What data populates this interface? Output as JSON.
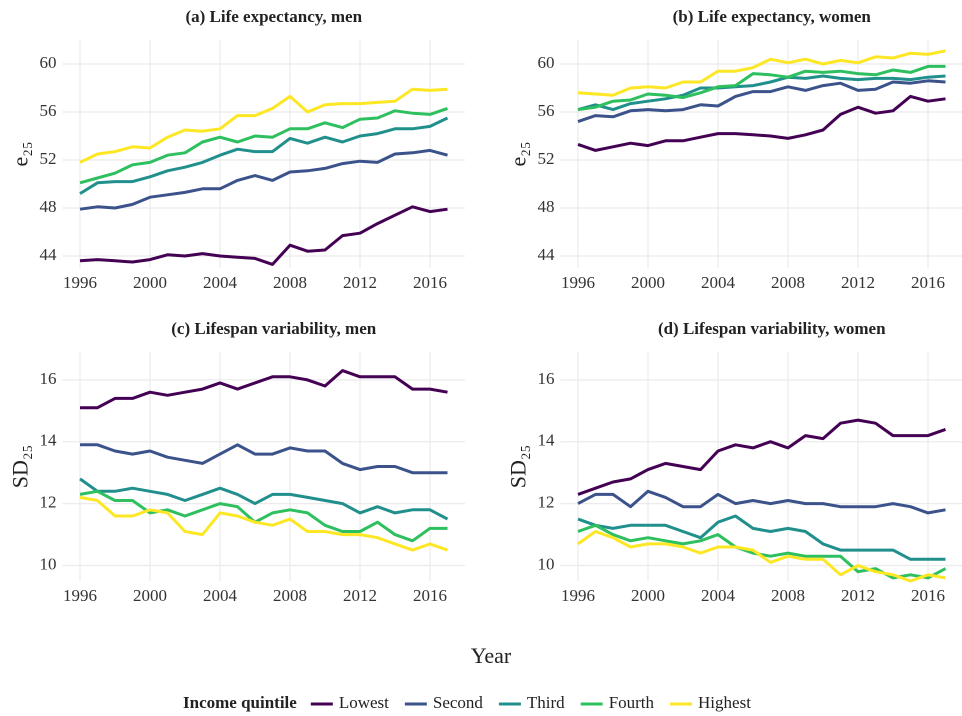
{
  "xlabel": "Year",
  "legend_title": "Income quintile",
  "chart_data": [
    {
      "type": "line",
      "title": "(a) Life expectancy, men",
      "ylabel": "e₂₅",
      "x": [
        1996,
        1997,
        1998,
        1999,
        2000,
        2001,
        2002,
        2003,
        2004,
        2005,
        2006,
        2007,
        2008,
        2009,
        2010,
        2011,
        2012,
        2013,
        2014,
        2015,
        2016,
        2017
      ],
      "xlim": [
        1995,
        2018
      ],
      "xticks": [
        1996,
        2000,
        2004,
        2008,
        2012,
        2016
      ],
      "ylim": [
        43,
        62
      ],
      "yticks": [
        44,
        48,
        52,
        56,
        60
      ],
      "grid": true,
      "series": [
        {
          "name": "Lowest",
          "color": "#440154",
          "values": [
            43.6,
            43.7,
            43.6,
            43.5,
            43.7,
            44.1,
            44.0,
            44.2,
            44.0,
            43.9,
            43.8,
            43.3,
            44.9,
            44.4,
            44.5,
            45.7,
            45.9,
            46.7,
            47.4,
            48.1,
            47.7,
            47.9
          ]
        },
        {
          "name": "Second",
          "color": "#3b528b",
          "values": [
            47.9,
            48.1,
            48.0,
            48.3,
            48.9,
            49.1,
            49.3,
            49.6,
            49.6,
            50.3,
            50.7,
            50.3,
            51.0,
            51.1,
            51.3,
            51.7,
            51.9,
            51.8,
            52.5,
            52.6,
            52.8,
            52.4
          ]
        },
        {
          "name": "Third",
          "color": "#21908c",
          "values": [
            49.2,
            50.1,
            50.2,
            50.2,
            50.6,
            51.1,
            51.4,
            51.8,
            52.4,
            52.9,
            52.7,
            52.7,
            53.8,
            53.4,
            53.9,
            53.5,
            54.0,
            54.2,
            54.6,
            54.6,
            54.8,
            55.5
          ]
        },
        {
          "name": "Fourth",
          "color": "#2ebf5f",
          "values": [
            50.1,
            50.5,
            50.9,
            51.6,
            51.8,
            52.4,
            52.6,
            53.5,
            53.9,
            53.5,
            54.0,
            53.9,
            54.6,
            54.6,
            55.1,
            54.7,
            55.4,
            55.5,
            56.1,
            55.9,
            55.8,
            56.3
          ]
        },
        {
          "name": "Highest",
          "color": "#fde725",
          "values": [
            51.8,
            52.5,
            52.7,
            53.1,
            53.0,
            53.9,
            54.5,
            54.4,
            54.6,
            55.7,
            55.7,
            56.3,
            57.3,
            56.0,
            56.6,
            56.7,
            56.7,
            56.8,
            56.9,
            57.9,
            57.8,
            57.9
          ]
        }
      ]
    },
    {
      "type": "line",
      "title": "(b) Life expectancy, women",
      "ylabel": "e₂₅",
      "x": [
        1996,
        1997,
        1998,
        1999,
        2000,
        2001,
        2002,
        2003,
        2004,
        2005,
        2006,
        2007,
        2008,
        2009,
        2010,
        2011,
        2012,
        2013,
        2014,
        2015,
        2016,
        2017
      ],
      "xlim": [
        1995,
        2018
      ],
      "xticks": [
        1996,
        2000,
        2004,
        2008,
        2012,
        2016
      ],
      "ylim": [
        43,
        62
      ],
      "yticks": [
        44,
        48,
        52,
        56,
        60
      ],
      "grid": true,
      "series": [
        {
          "name": "Lowest",
          "color": "#440154",
          "values": [
            53.3,
            52.8,
            53.1,
            53.4,
            53.2,
            53.6,
            53.6,
            53.9,
            54.2,
            54.2,
            54.1,
            54.0,
            53.8,
            54.1,
            54.5,
            55.8,
            56.4,
            55.9,
            56.1,
            57.3,
            56.9,
            57.1
          ]
        },
        {
          "name": "Second",
          "color": "#3b528b",
          "values": [
            55.2,
            55.7,
            55.6,
            56.1,
            56.2,
            56.1,
            56.2,
            56.6,
            56.5,
            57.3,
            57.7,
            57.7,
            58.1,
            57.8,
            58.2,
            58.4,
            57.8,
            57.9,
            58.5,
            58.4,
            58.6,
            58.5
          ]
        },
        {
          "name": "Third",
          "color": "#21908c",
          "values": [
            56.2,
            56.6,
            56.2,
            56.7,
            56.9,
            57.1,
            57.4,
            58.0,
            58.0,
            58.1,
            58.2,
            58.5,
            58.9,
            58.8,
            59.0,
            58.8,
            58.7,
            58.8,
            58.8,
            58.7,
            58.9,
            59.0
          ]
        },
        {
          "name": "Fourth",
          "color": "#2ebf5f",
          "values": [
            56.2,
            56.4,
            56.9,
            57.0,
            57.5,
            57.4,
            57.2,
            57.6,
            58.1,
            58.2,
            59.2,
            59.1,
            58.9,
            59.4,
            59.3,
            59.4,
            59.2,
            59.1,
            59.5,
            59.3,
            59.8,
            59.8
          ]
        },
        {
          "name": "Highest",
          "color": "#fde725",
          "values": [
            57.6,
            57.5,
            57.4,
            58.0,
            58.1,
            58.0,
            58.5,
            58.5,
            59.4,
            59.4,
            59.7,
            60.4,
            60.1,
            60.4,
            60.0,
            60.3,
            60.1,
            60.6,
            60.5,
            60.9,
            60.8,
            61.1
          ]
        }
      ]
    },
    {
      "type": "line",
      "title": "(c) Lifespan variability, men",
      "ylabel": "SD₂₅",
      "x": [
        1996,
        1997,
        1998,
        1999,
        2000,
        2001,
        2002,
        2003,
        2004,
        2005,
        2006,
        2007,
        2008,
        2009,
        2010,
        2011,
        2012,
        2013,
        2014,
        2015,
        2016,
        2017
      ],
      "xlim": [
        1995,
        2018
      ],
      "xticks": [
        1996,
        2000,
        2004,
        2008,
        2012,
        2016
      ],
      "ylim": [
        9.5,
        16.9
      ],
      "yticks": [
        10,
        12,
        14,
        16
      ],
      "grid": true,
      "series": [
        {
          "name": "Lowest",
          "color": "#440154",
          "values": [
            15.1,
            15.1,
            15.4,
            15.4,
            15.6,
            15.5,
            15.6,
            15.7,
            15.9,
            15.7,
            15.9,
            16.1,
            16.1,
            16.0,
            15.8,
            16.3,
            16.1,
            16.1,
            16.1,
            15.7,
            15.7,
            15.6
          ]
        },
        {
          "name": "Second",
          "color": "#3b528b",
          "values": [
            13.9,
            13.9,
            13.7,
            13.6,
            13.7,
            13.5,
            13.4,
            13.3,
            13.6,
            13.9,
            13.6,
            13.6,
            13.8,
            13.7,
            13.7,
            13.3,
            13.1,
            13.2,
            13.2,
            13.0,
            13.0,
            13.0
          ]
        },
        {
          "name": "Third",
          "color": "#21908c",
          "values": [
            12.8,
            12.4,
            12.4,
            12.5,
            12.4,
            12.3,
            12.1,
            12.3,
            12.5,
            12.3,
            12.0,
            12.3,
            12.3,
            12.2,
            12.1,
            12.0,
            11.7,
            11.9,
            11.7,
            11.8,
            11.8,
            11.5
          ]
        },
        {
          "name": "Fourth",
          "color": "#2ebf5f",
          "values": [
            12.3,
            12.4,
            12.1,
            12.1,
            11.7,
            11.8,
            11.6,
            11.8,
            12.0,
            11.9,
            11.4,
            11.7,
            11.8,
            11.7,
            11.3,
            11.1,
            11.1,
            11.4,
            11.0,
            10.8,
            11.2,
            11.2
          ]
        },
        {
          "name": "Highest",
          "color": "#fde725",
          "values": [
            12.2,
            12.1,
            11.6,
            11.6,
            11.8,
            11.7,
            11.1,
            11.0,
            11.7,
            11.6,
            11.4,
            11.3,
            11.5,
            11.1,
            11.1,
            11.0,
            11.0,
            10.9,
            10.7,
            10.5,
            10.7,
            10.5
          ]
        }
      ]
    },
    {
      "type": "line",
      "title": "(d) Lifespan variability, women",
      "ylabel": "SD₂₅",
      "x": [
        1996,
        1997,
        1998,
        1999,
        2000,
        2001,
        2002,
        2003,
        2004,
        2005,
        2006,
        2007,
        2008,
        2009,
        2010,
        2011,
        2012,
        2013,
        2014,
        2015,
        2016,
        2017
      ],
      "xlim": [
        1995,
        2018
      ],
      "xticks": [
        1996,
        2000,
        2004,
        2008,
        2012,
        2016
      ],
      "ylim": [
        9.5,
        16.9
      ],
      "yticks": [
        10,
        12,
        14,
        16
      ],
      "grid": true,
      "series": [
        {
          "name": "Lowest",
          "color": "#440154",
          "values": [
            12.3,
            12.5,
            12.7,
            12.8,
            13.1,
            13.3,
            13.2,
            13.1,
            13.7,
            13.9,
            13.8,
            14.0,
            13.8,
            14.2,
            14.1,
            14.6,
            14.7,
            14.6,
            14.2,
            14.2,
            14.2,
            14.4
          ]
        },
        {
          "name": "Second",
          "color": "#3b528b",
          "values": [
            12.0,
            12.3,
            12.3,
            11.9,
            12.4,
            12.2,
            11.9,
            11.9,
            12.3,
            12.0,
            12.1,
            12.0,
            12.1,
            12.0,
            12.0,
            11.9,
            11.9,
            11.9,
            12.0,
            11.9,
            11.7,
            11.8
          ]
        },
        {
          "name": "Third",
          "color": "#21908c",
          "values": [
            11.5,
            11.3,
            11.2,
            11.3,
            11.3,
            11.3,
            11.1,
            10.9,
            11.4,
            11.6,
            11.2,
            11.1,
            11.2,
            11.1,
            10.7,
            10.5,
            10.5,
            10.5,
            10.5,
            10.2,
            10.2,
            10.2
          ]
        },
        {
          "name": "Fourth",
          "color": "#2ebf5f",
          "values": [
            11.1,
            11.3,
            11.0,
            10.8,
            10.9,
            10.8,
            10.7,
            10.8,
            11.0,
            10.6,
            10.4,
            10.3,
            10.4,
            10.3,
            10.3,
            10.3,
            9.8,
            9.9,
            9.6,
            9.7,
            9.6,
            9.9
          ]
        },
        {
          "name": "Highest",
          "color": "#fde725",
          "values": [
            10.7,
            11.1,
            10.9,
            10.6,
            10.7,
            10.7,
            10.6,
            10.4,
            10.6,
            10.6,
            10.5,
            10.1,
            10.3,
            10.2,
            10.2,
            9.7,
            10.0,
            9.8,
            9.7,
            9.5,
            9.7,
            9.6
          ]
        }
      ]
    }
  ]
}
